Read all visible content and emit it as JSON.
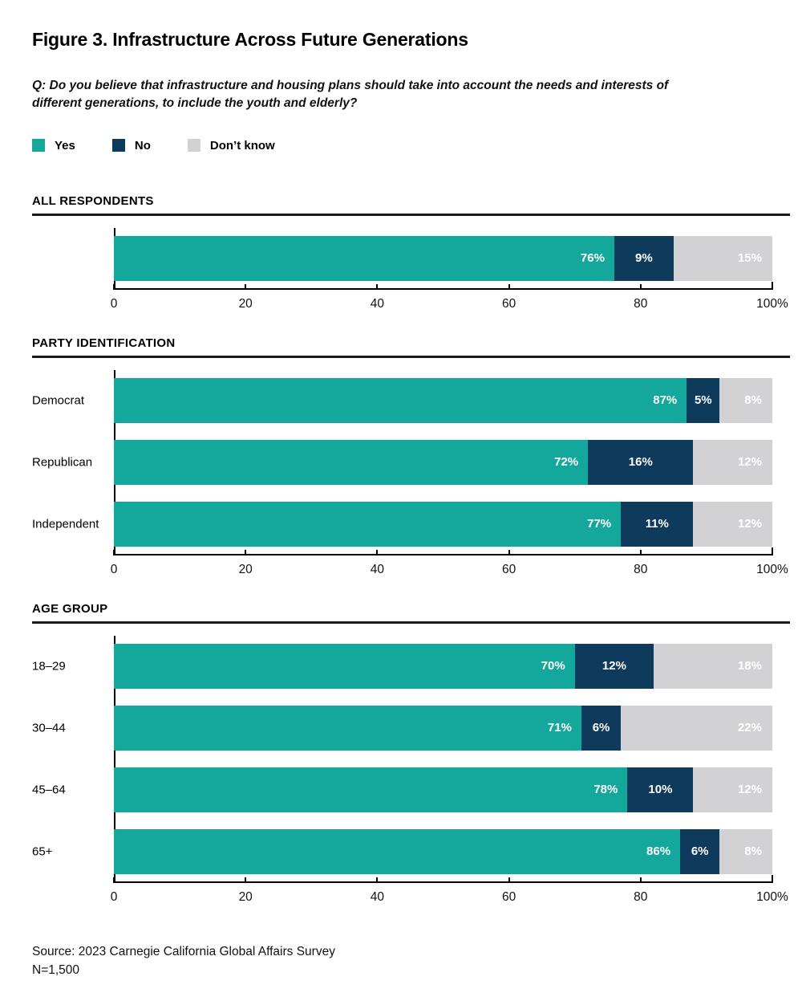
{
  "figure": {
    "title": "Figure 3. Infrastructure Across Future Generations",
    "question": "Q: Do you believe that infrastructure and housing plans should take into account the needs and interests of different generations, to include the youth and elderly?",
    "source": "Source: 2023 Carnegie California Global Affairs Survey",
    "n": "N=1,500"
  },
  "colors": {
    "yes": "#14A79B",
    "no": "#0E3A5C",
    "dont_know": "#D2D2D4",
    "rule": "#1A1A1A",
    "axis": "#000000"
  },
  "chart_data": {
    "type": "bar",
    "stacked": true,
    "orientation": "horizontal",
    "title": "Figure 3. Infrastructure Across Future Generations",
    "xlabel": "",
    "ylabel": "",
    "xlim": [
      0,
      100
    ],
    "grid": false,
    "legend_position": "top-left",
    "tick_positions": [
      0,
      20,
      40,
      60,
      80,
      100
    ],
    "tick_labels": [
      "0",
      "20",
      "40",
      "60",
      "80",
      "100%"
    ],
    "series": [
      {
        "name": "Yes",
        "color": "#14A79B"
      },
      {
        "name": "No",
        "color": "#0E3A5C"
      },
      {
        "name": "Don’t know",
        "color": "#D2D2D4"
      }
    ],
    "groups": [
      {
        "header": "ALL RESPONDENTS",
        "rows": [
          {
            "label": "",
            "values": [
              76,
              9,
              15
            ]
          }
        ]
      },
      {
        "header": "PARTY IDENTIFICATION",
        "rows": [
          {
            "label": "Democrat",
            "values": [
              87,
              5,
              8
            ]
          },
          {
            "label": "Republican",
            "values": [
              72,
              16,
              12
            ]
          },
          {
            "label": "Independent",
            "values": [
              77,
              11,
              12
            ]
          }
        ]
      },
      {
        "header": "AGE GROUP",
        "rows": [
          {
            "label": "18–29",
            "values": [
              70,
              12,
              18
            ]
          },
          {
            "label": "30–44",
            "values": [
              71,
              6,
              22
            ]
          },
          {
            "label": "45–64",
            "values": [
              78,
              10,
              12
            ]
          },
          {
            "label": "65+",
            "values": [
              86,
              6,
              8
            ]
          }
        ]
      }
    ]
  }
}
